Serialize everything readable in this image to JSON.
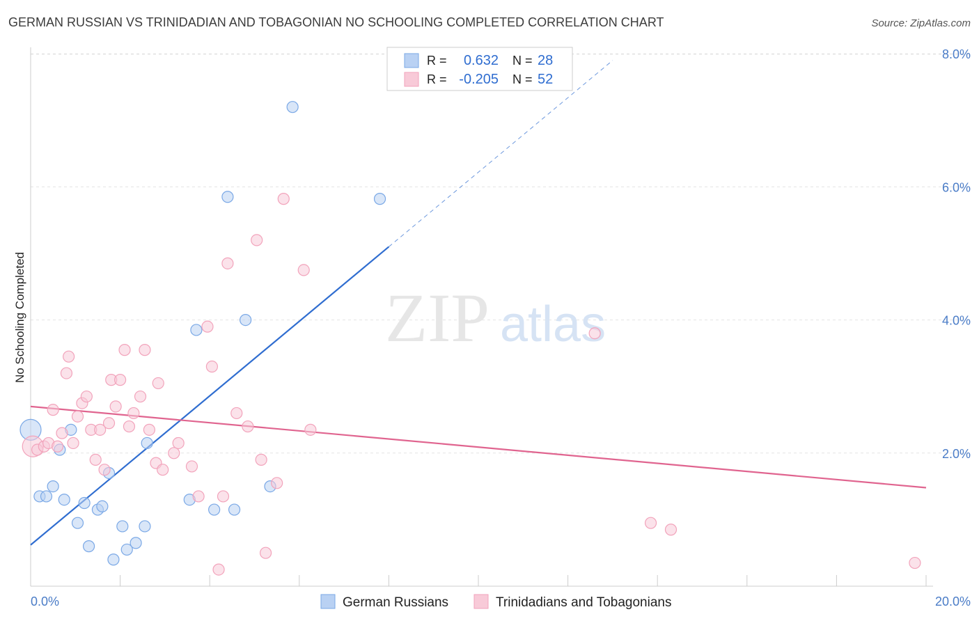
{
  "chart_data": {
    "type": "scatter",
    "title": "GERMAN RUSSIAN VS TRINIDADIAN AND TOBAGONIAN NO SCHOOLING COMPLETED CORRELATION CHART",
    "source": "Source: ZipAtlas.com",
    "watermark": {
      "zip": "ZIP",
      "atlas": "atlas"
    },
    "ylabel": "No Schooling Completed",
    "xlim": [
      0,
      20
    ],
    "ylim": [
      0,
      8.4
    ],
    "y_ticks": [
      2,
      4,
      6,
      8
    ],
    "y_tick_labels": [
      "2.0%",
      "4.0%",
      "6.0%",
      "8.0%"
    ],
    "x_tick_labels": [
      "0.0%",
      "20.0%"
    ],
    "grid": true,
    "legend_position": "top-center",
    "stats": [
      {
        "r_label": "R =",
        "r": "0.632",
        "n_label": "N =",
        "n": "28"
      },
      {
        "r_label": "R =",
        "r": "-0.205",
        "n_label": "N =",
        "n": "52"
      }
    ],
    "series": [
      {
        "name": "German Russians",
        "color": "#7aa8e6",
        "fill": "#b9d1f3",
        "line_color": "#2f6dd0",
        "trend": {
          "x0": 0,
          "y0": 0.62,
          "x1": 8.0,
          "y1": 5.1,
          "dash_to": {
            "x": 13.0,
            "y": 7.9
          }
        },
        "points": [
          [
            0.0,
            2.35
          ],
          [
            0.2,
            1.35
          ],
          [
            0.35,
            1.35
          ],
          [
            0.5,
            1.5
          ],
          [
            0.65,
            2.05
          ],
          [
            0.75,
            1.3
          ],
          [
            0.9,
            2.35
          ],
          [
            1.05,
            0.95
          ],
          [
            1.2,
            1.25
          ],
          [
            1.3,
            0.6
          ],
          [
            1.5,
            1.15
          ],
          [
            1.6,
            1.2
          ],
          [
            1.75,
            1.7
          ],
          [
            1.85,
            0.4
          ],
          [
            2.05,
            0.9
          ],
          [
            2.15,
            0.55
          ],
          [
            2.35,
            0.65
          ],
          [
            2.55,
            0.9
          ],
          [
            2.6,
            2.15
          ],
          [
            3.55,
            1.3
          ],
          [
            3.7,
            3.85
          ],
          [
            4.1,
            1.15
          ],
          [
            4.4,
            5.85
          ],
          [
            4.55,
            1.15
          ],
          [
            4.8,
            4.0
          ],
          [
            5.35,
            1.5
          ],
          [
            5.85,
            7.2
          ],
          [
            7.8,
            5.82
          ]
        ]
      },
      {
        "name": "Trinidadians and Tobagonians",
        "color": "#f2a3bb",
        "fill": "#f8cad8",
        "line_color": "#e0648f",
        "trend": {
          "x0": 0,
          "y0": 2.7,
          "x1": 20,
          "y1": 1.48
        },
        "points": [
          [
            0.05,
            2.1
          ],
          [
            0.15,
            2.05
          ],
          [
            0.3,
            2.1
          ],
          [
            0.4,
            2.15
          ],
          [
            0.5,
            2.65
          ],
          [
            0.6,
            2.1
          ],
          [
            0.7,
            2.3
          ],
          [
            0.8,
            3.2
          ],
          [
            0.85,
            3.45
          ],
          [
            0.95,
            2.15
          ],
          [
            1.05,
            2.55
          ],
          [
            1.15,
            2.75
          ],
          [
            1.25,
            2.85
          ],
          [
            1.35,
            2.35
          ],
          [
            1.45,
            1.9
          ],
          [
            1.55,
            2.35
          ],
          [
            1.65,
            1.75
          ],
          [
            1.75,
            2.45
          ],
          [
            1.8,
            3.1
          ],
          [
            1.9,
            2.7
          ],
          [
            2.0,
            3.1
          ],
          [
            2.1,
            3.55
          ],
          [
            2.2,
            2.4
          ],
          [
            2.3,
            2.6
          ],
          [
            2.45,
            2.85
          ],
          [
            2.55,
            3.55
          ],
          [
            2.65,
            2.35
          ],
          [
            2.8,
            1.85
          ],
          [
            2.85,
            3.05
          ],
          [
            2.95,
            1.75
          ],
          [
            3.2,
            2.0
          ],
          [
            3.3,
            2.15
          ],
          [
            3.6,
            1.8
          ],
          [
            3.75,
            1.35
          ],
          [
            3.95,
            3.9
          ],
          [
            4.05,
            3.3
          ],
          [
            4.2,
            0.25
          ],
          [
            4.3,
            1.35
          ],
          [
            4.4,
            4.85
          ],
          [
            4.6,
            2.6
          ],
          [
            4.85,
            2.4
          ],
          [
            5.05,
            5.2
          ],
          [
            5.15,
            1.9
          ],
          [
            5.25,
            0.5
          ],
          [
            5.5,
            1.55
          ],
          [
            5.65,
            5.82
          ],
          [
            6.1,
            4.75
          ],
          [
            6.25,
            2.35
          ],
          [
            12.6,
            3.8
          ],
          [
            13.85,
            0.95
          ],
          [
            14.3,
            0.85
          ],
          [
            19.75,
            0.35
          ]
        ]
      }
    ]
  }
}
